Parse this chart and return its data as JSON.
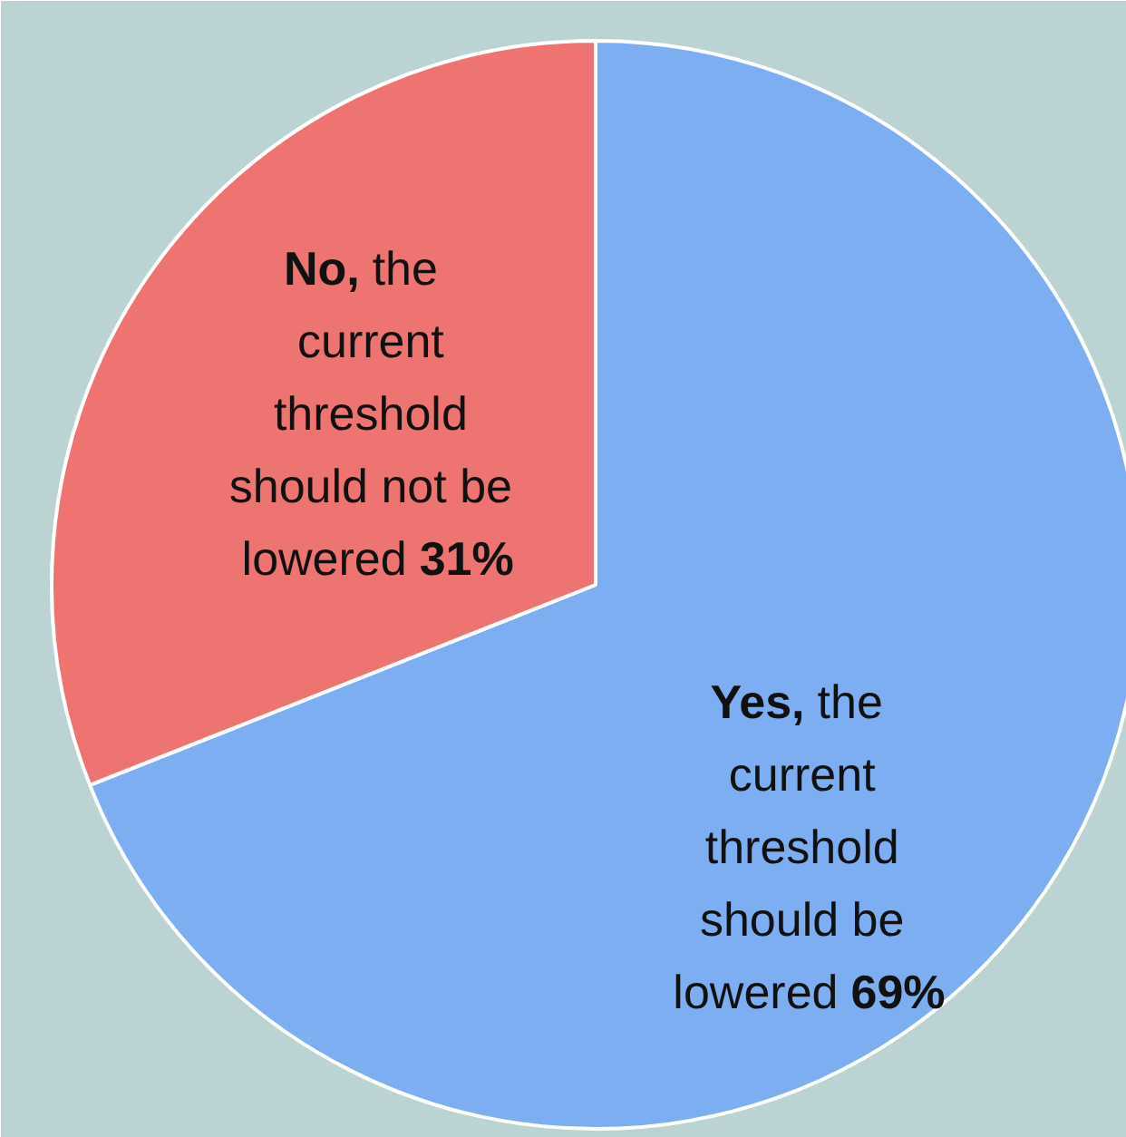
{
  "chart_data": {
    "type": "pie",
    "categories": [
      "Yes, the\ncurrent\nthreshold\nshould be\nlowered",
      "No, the\ncurrent\nthreshold\nshould not be\nlowered"
    ],
    "values": [
      69,
      31
    ],
    "value_labels": [
      "69%",
      "31%"
    ],
    "colors": [
      "#7eaef2",
      "#ee7472"
    ]
  }
}
